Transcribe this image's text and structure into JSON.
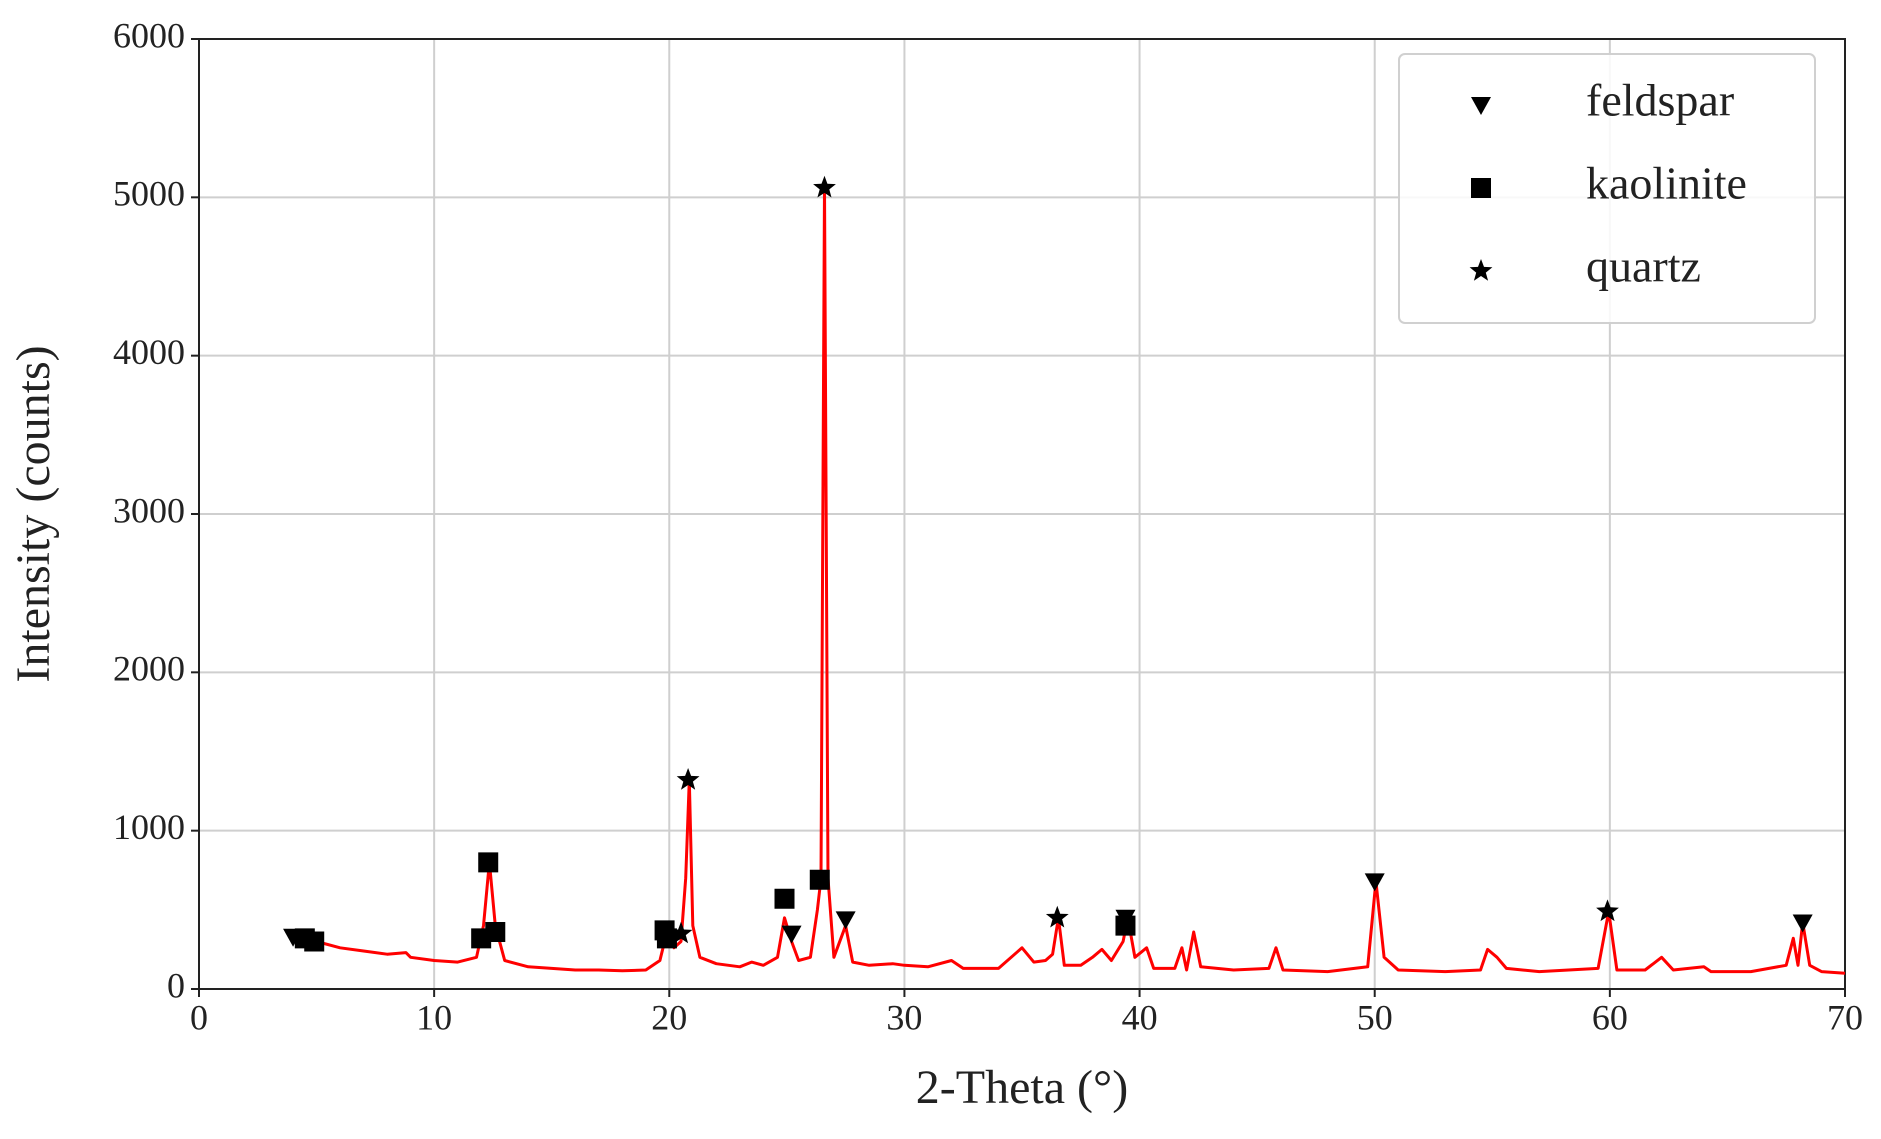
{
  "chart_data": {
    "type": "line",
    "xlabel": "2-Theta (°)",
    "ylabel": "Intensity (counts)",
    "color": "#ff0000",
    "x": [
      4,
      4.5,
      5,
      6,
      7,
      8,
      8.8,
      9,
      10,
      11,
      11.8,
      12.1,
      12.35,
      12.6,
      13,
      14,
      15,
      16,
      17,
      18,
      19,
      19.6,
      19.9,
      20.2,
      20.5,
      20.7,
      20.85,
      21,
      21.3,
      22,
      23,
      23.5,
      24,
      24.6,
      24.9,
      25.2,
      25.5,
      26,
      26.3,
      26.45,
      26.6,
      26.75,
      27,
      27.5,
      27.8,
      28.5,
      29.5,
      30,
      31,
      32,
      32.5,
      34,
      35,
      35.5,
      36,
      36.3,
      36.55,
      36.8,
      37.5,
      38,
      38.4,
      38.8,
      39.3,
      39.5,
      39.8,
      40.3,
      40.6,
      41.5,
      41.8,
      42,
      42.3,
      42.6,
      44,
      45.5,
      45.8,
      46.1,
      48,
      49.7,
      50.05,
      50.4,
      51,
      53,
      54.5,
      54.8,
      55.2,
      55.6,
      57,
      59.5,
      59.95,
      60.3,
      61.5,
      62.2,
      62.7,
      64,
      64.3,
      66,
      67.5,
      67.8,
      68,
      68.2,
      68.5,
      69,
      70
    ],
    "values": [
      340,
      320,
      300,
      260,
      240,
      220,
      230,
      200,
      180,
      170,
      200,
      400,
      800,
      400,
      180,
      140,
      130,
      120,
      120,
      115,
      120,
      180,
      360,
      260,
      300,
      700,
      1320,
      400,
      200,
      160,
      140,
      170,
      150,
      200,
      450,
      300,
      180,
      200,
      500,
      700,
      5060,
      700,
      200,
      400,
      170,
      150,
      160,
      150,
      140,
      180,
      130,
      130,
      260,
      170,
      180,
      220,
      450,
      150,
      150,
      200,
      250,
      180,
      300,
      450,
      200,
      260,
      130,
      130,
      260,
      120,
      360,
      140,
      120,
      130,
      260,
      120,
      110,
      140,
      680,
      200,
      120,
      110,
      120,
      250,
      200,
      130,
      110,
      130,
      490,
      120,
      120,
      200,
      120,
      140,
      110,
      110,
      150,
      320,
      150,
      420,
      150,
      110,
      100
    ],
    "series": [
      {
        "name": "feldspar",
        "marker": "triangle-down",
        "color": "#000000",
        "x": [
          4.0,
          25.2,
          27.5,
          39.4,
          50.0,
          68.2
        ],
        "values": [
          330,
          350,
          440,
          450,
          680,
          420
        ]
      },
      {
        "name": "kaolinite",
        "marker": "square",
        "color": "#000000",
        "x": [
          4.5,
          4.9,
          12.0,
          12.3,
          12.6,
          19.8,
          19.9,
          24.9,
          26.4,
          39.4
        ],
        "values": [
          320,
          300,
          320,
          800,
          360,
          370,
          320,
          570,
          690,
          400
        ]
      },
      {
        "name": "quartz",
        "marker": "star",
        "color": "#000000",
        "x": [
          20.5,
          20.8,
          26.6,
          36.5,
          59.9
        ],
        "values": [
          350,
          1320,
          5060,
          450,
          490
        ]
      }
    ],
    "xlim": [
      0,
      70
    ],
    "xticks": [
      0,
      10,
      20,
      30,
      40,
      50,
      60,
      70
    ],
    "ylim": [
      0,
      6000
    ],
    "yticks": [
      0,
      1000,
      2000,
      3000,
      4000,
      5000,
      6000
    ],
    "grid": true,
    "legend": "upper right"
  }
}
